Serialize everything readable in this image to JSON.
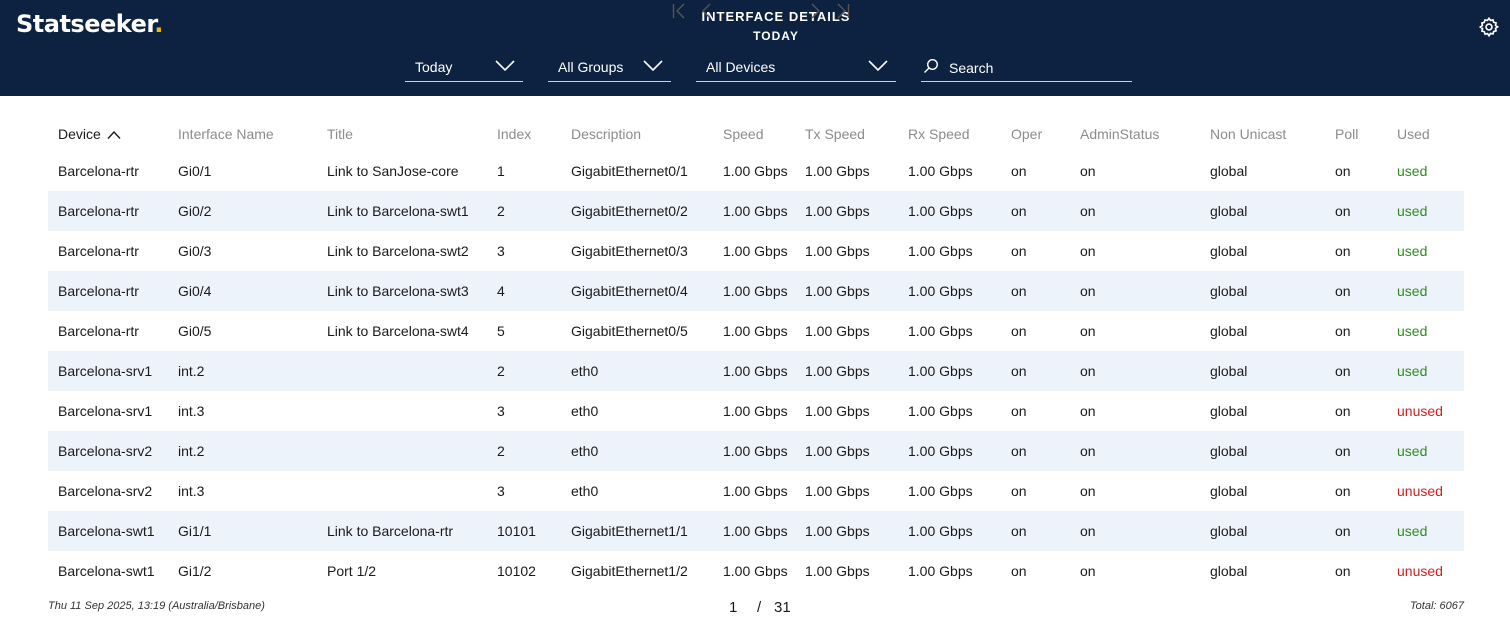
{
  "header": {
    "logo_text": "Statseeker",
    "logo_dot": ".",
    "title": "INTERFACE DETAILS",
    "subtitle": "TODAY",
    "settings_icon": "gear-icon"
  },
  "filters": {
    "time": "Today",
    "groups": "All Groups",
    "devices": "All Devices",
    "search_placeholder": "Search",
    "search_value": ""
  },
  "colors": {
    "header_bg": "#0d2240",
    "row_alt": "#edf3fa",
    "used": "#2e8b1e",
    "unused": "#d31f1f",
    "logo_accent": "#f2b705"
  },
  "table": {
    "sort": {
      "column": "Device",
      "direction": "ascending",
      "icon": "chevron-up-icon"
    },
    "headers": [
      "Device",
      "Interface Name",
      "Title",
      "Index",
      "Description",
      "Speed",
      "Tx Speed",
      "Rx Speed",
      "Oper",
      "AdminStatus",
      "Non Unicast",
      "Poll",
      "Used"
    ],
    "rows": [
      {
        "device": "Barcelona-rtr",
        "iface": "Gi0/1",
        "title": "Link to SanJose-core",
        "index": "1",
        "desc": "GigabitEthernet0/1",
        "speed": "1.00 Gbps",
        "tx": "1.00 Gbps",
        "rx": "1.00 Gbps",
        "oper": "on",
        "admin": "on",
        "nonuni": "global",
        "poll": "on",
        "used": "used"
      },
      {
        "device": "Barcelona-rtr",
        "iface": "Gi0/2",
        "title": "Link to Barcelona-swt1",
        "index": "2",
        "desc": "GigabitEthernet0/2",
        "speed": "1.00 Gbps",
        "tx": "1.00 Gbps",
        "rx": "1.00 Gbps",
        "oper": "on",
        "admin": "on",
        "nonuni": "global",
        "poll": "on",
        "used": "used"
      },
      {
        "device": "Barcelona-rtr",
        "iface": "Gi0/3",
        "title": "Link to Barcelona-swt2",
        "index": "3",
        "desc": "GigabitEthernet0/3",
        "speed": "1.00 Gbps",
        "tx": "1.00 Gbps",
        "rx": "1.00 Gbps",
        "oper": "on",
        "admin": "on",
        "nonuni": "global",
        "poll": "on",
        "used": "used"
      },
      {
        "device": "Barcelona-rtr",
        "iface": "Gi0/4",
        "title": "Link to Barcelona-swt3",
        "index": "4",
        "desc": "GigabitEthernet0/4",
        "speed": "1.00 Gbps",
        "tx": "1.00 Gbps",
        "rx": "1.00 Gbps",
        "oper": "on",
        "admin": "on",
        "nonuni": "global",
        "poll": "on",
        "used": "used"
      },
      {
        "device": "Barcelona-rtr",
        "iface": "Gi0/5",
        "title": "Link to Barcelona-swt4",
        "index": "5",
        "desc": "GigabitEthernet0/5",
        "speed": "1.00 Gbps",
        "tx": "1.00 Gbps",
        "rx": "1.00 Gbps",
        "oper": "on",
        "admin": "on",
        "nonuni": "global",
        "poll": "on",
        "used": "used"
      },
      {
        "device": "Barcelona-srv1",
        "iface": "int.2",
        "title": "",
        "index": "2",
        "desc": "eth0",
        "speed": "1.00 Gbps",
        "tx": "1.00 Gbps",
        "rx": "1.00 Gbps",
        "oper": "on",
        "admin": "on",
        "nonuni": "global",
        "poll": "on",
        "used": "used"
      },
      {
        "device": "Barcelona-srv1",
        "iface": "int.3",
        "title": "",
        "index": "3",
        "desc": "eth0",
        "speed": "1.00 Gbps",
        "tx": "1.00 Gbps",
        "rx": "1.00 Gbps",
        "oper": "on",
        "admin": "on",
        "nonuni": "global",
        "poll": "on",
        "used": "unused"
      },
      {
        "device": "Barcelona-srv2",
        "iface": "int.2",
        "title": "",
        "index": "2",
        "desc": "eth0",
        "speed": "1.00 Gbps",
        "tx": "1.00 Gbps",
        "rx": "1.00 Gbps",
        "oper": "on",
        "admin": "on",
        "nonuni": "global",
        "poll": "on",
        "used": "used"
      },
      {
        "device": "Barcelona-srv2",
        "iface": "int.3",
        "title": "",
        "index": "3",
        "desc": "eth0",
        "speed": "1.00 Gbps",
        "tx": "1.00 Gbps",
        "rx": "1.00 Gbps",
        "oper": "on",
        "admin": "on",
        "nonuni": "global",
        "poll": "on",
        "used": "unused"
      },
      {
        "device": "Barcelona-swt1",
        "iface": "Gi1/1",
        "title": "Link to Barcelona-rtr",
        "index": "10101",
        "desc": "GigabitEthernet1/1",
        "speed": "1.00 Gbps",
        "tx": "1.00 Gbps",
        "rx": "1.00 Gbps",
        "oper": "on",
        "admin": "on",
        "nonuni": "global",
        "poll": "on",
        "used": "used"
      },
      {
        "device": "Barcelona-swt1",
        "iface": "Gi1/2",
        "title": "Port 1/2",
        "index": "10102",
        "desc": "GigabitEthernet1/2",
        "speed": "1.00 Gbps",
        "tx": "1.00 Gbps",
        "rx": "1.00 Gbps",
        "oper": "on",
        "admin": "on",
        "nonuni": "global",
        "poll": "on",
        "used": "unused"
      }
    ]
  },
  "footer": {
    "timestamp": "Thu 11 Sep 2025, 13:19 (Australia/Brisbane)",
    "total": "Total: 6067",
    "pager": {
      "current": "1",
      "separator": "/",
      "total_pages": "31"
    }
  }
}
